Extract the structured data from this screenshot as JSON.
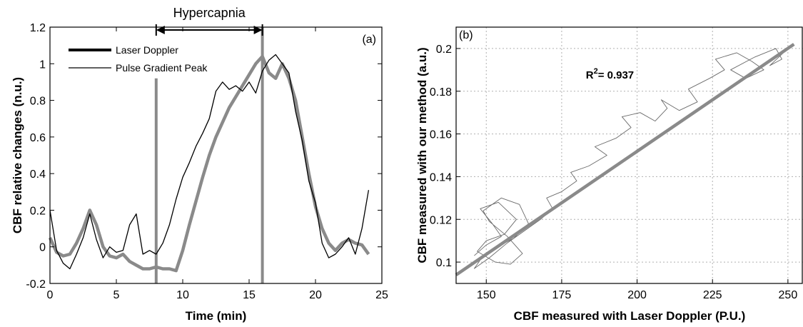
{
  "chart_data": [
    {
      "type": "line",
      "panel_label": "(a)",
      "xlabel": "Time (min)",
      "ylabel": "CBF relative changes (n.u.)",
      "xlim": [
        0,
        25
      ],
      "ylim": [
        -0.2,
        1.2
      ],
      "xticks": [
        0,
        5,
        10,
        15,
        20,
        25
      ],
      "yticks": [
        -0.2,
        0,
        0.2,
        0.4,
        0.6,
        0.8,
        1,
        1.2
      ],
      "ytick_labels": [
        "-0.2",
        "0",
        "0.2",
        "0.4",
        "0.6",
        "0.8",
        "1",
        "1.2"
      ],
      "grid": false,
      "legend_position": "top-left",
      "annotation": {
        "text": "Hypercapnia",
        "x_start": 8,
        "x_end": 16
      },
      "vlines": [
        8,
        16
      ],
      "series": [
        {
          "name": "Laser Doppler",
          "color": "#8a8a8a",
          "x": [
            0,
            0.5,
            1,
            1.5,
            2,
            2.5,
            3,
            3.5,
            4,
            4.5,
            5,
            5.5,
            6,
            6.5,
            7,
            7.5,
            8,
            8.5,
            9,
            9.5,
            10,
            10.5,
            11,
            11.5,
            12,
            12.5,
            13,
            13.5,
            14,
            14.5,
            15,
            15.5,
            16,
            16.5,
            17,
            17.5,
            18,
            18.5,
            19,
            19.5,
            20,
            20.5,
            21,
            21.5,
            22,
            22.5,
            23,
            23.5,
            24
          ],
          "y": [
            0.05,
            -0.03,
            -0.05,
            -0.04,
            0.02,
            0.1,
            0.2,
            0.12,
            0.0,
            -0.05,
            -0.06,
            -0.04,
            -0.08,
            -0.1,
            -0.12,
            -0.12,
            -0.11,
            -0.12,
            -0.12,
            -0.13,
            -0.02,
            0.12,
            0.25,
            0.38,
            0.5,
            0.6,
            0.68,
            0.76,
            0.82,
            0.88,
            0.94,
            1.0,
            1.04,
            0.95,
            0.92,
            1.0,
            0.92,
            0.8,
            0.6,
            0.4,
            0.22,
            0.1,
            0.02,
            -0.02,
            0.02,
            0.04,
            0.02,
            0.01,
            -0.04
          ]
        },
        {
          "name": "Pulse Gradient Peak",
          "color": "#000000",
          "x": [
            0,
            0.5,
            1,
            1.5,
            2,
            2.5,
            3,
            3.5,
            4,
            4.5,
            5,
            5.5,
            6,
            6.5,
            7,
            7.5,
            8,
            8.5,
            9,
            9.5,
            10,
            10.5,
            11,
            11.5,
            12,
            12.5,
            13,
            13.5,
            14,
            14.5,
            15,
            15.5,
            16,
            16.5,
            17,
            17.5,
            18,
            18.5,
            19,
            19.5,
            20,
            20.5,
            21,
            21.5,
            22,
            22.5,
            23,
            23.5,
            24
          ],
          "y": [
            0.2,
            -0.02,
            -0.09,
            -0.12,
            -0.04,
            0.05,
            0.18,
            0.04,
            -0.06,
            0.0,
            -0.03,
            -0.02,
            0.12,
            0.18,
            -0.04,
            -0.02,
            -0.04,
            0.02,
            0.12,
            0.26,
            0.38,
            0.46,
            0.55,
            0.62,
            0.7,
            0.85,
            0.9,
            0.86,
            0.88,
            0.85,
            0.9,
            0.84,
            0.96,
            1.02,
            1.05,
            1.0,
            0.95,
            0.74,
            0.58,
            0.36,
            0.24,
            0.02,
            -0.06,
            -0.04,
            0.0,
            0.05,
            -0.04,
            0.1,
            0.31
          ]
        }
      ]
    },
    {
      "type": "scatter",
      "panel_label": "(b)",
      "xlabel": "CBF measured with Laser Doppler (P.U.)",
      "ylabel": "CBF measured with our method (a.u.)",
      "xlim": [
        140,
        255
      ],
      "ylim": [
        0.09,
        0.21
      ],
      "xticks": [
        150,
        175,
        200,
        225,
        250
      ],
      "yticks": [
        0.1,
        0.12,
        0.14,
        0.16,
        0.18,
        0.2
      ],
      "ytick_labels": [
        "0.1",
        "0.12",
        "0.14",
        "0.16",
        "0.18",
        "0.2"
      ],
      "grid": true,
      "annotation": {
        "prefix": "R",
        "sup": "2",
        "text": "= 0.937"
      },
      "fit_line": {
        "x": [
          140,
          252
        ],
        "y": [
          0.094,
          0.202
        ],
        "color": "#8a8a8a"
      },
      "trace": {
        "color": "#6a6a6a",
        "x": [
          146,
          150,
          155,
          152,
          148,
          154,
          160,
          156,
          150,
          147,
          153,
          158,
          162,
          157,
          151,
          149,
          155,
          161,
          164,
          159,
          152,
          148,
          146,
          151,
          157,
          163,
          168,
          172,
          170,
          175,
          180,
          178,
          184,
          190,
          186,
          193,
          198,
          195,
          201,
          206,
          210,
          208,
          214,
          220,
          217,
          224,
          229,
          226,
          233,
          238,
          242,
          236,
          231,
          239,
          246,
          248,
          244,
          250
        ],
        "y": [
          0.103,
          0.108,
          0.112,
          0.118,
          0.125,
          0.128,
          0.12,
          0.113,
          0.11,
          0.105,
          0.1,
          0.099,
          0.104,
          0.112,
          0.119,
          0.124,
          0.13,
          0.127,
          0.118,
          0.111,
          0.106,
          0.101,
          0.097,
          0.102,
          0.109,
          0.115,
          0.12,
          0.125,
          0.13,
          0.133,
          0.138,
          0.142,
          0.145,
          0.15,
          0.154,
          0.158,
          0.163,
          0.168,
          0.17,
          0.166,
          0.172,
          0.176,
          0.171,
          0.175,
          0.181,
          0.186,
          0.19,
          0.195,
          0.198,
          0.194,
          0.19,
          0.186,
          0.19,
          0.196,
          0.2,
          0.195,
          0.192,
          0.2
        ]
      }
    }
  ]
}
